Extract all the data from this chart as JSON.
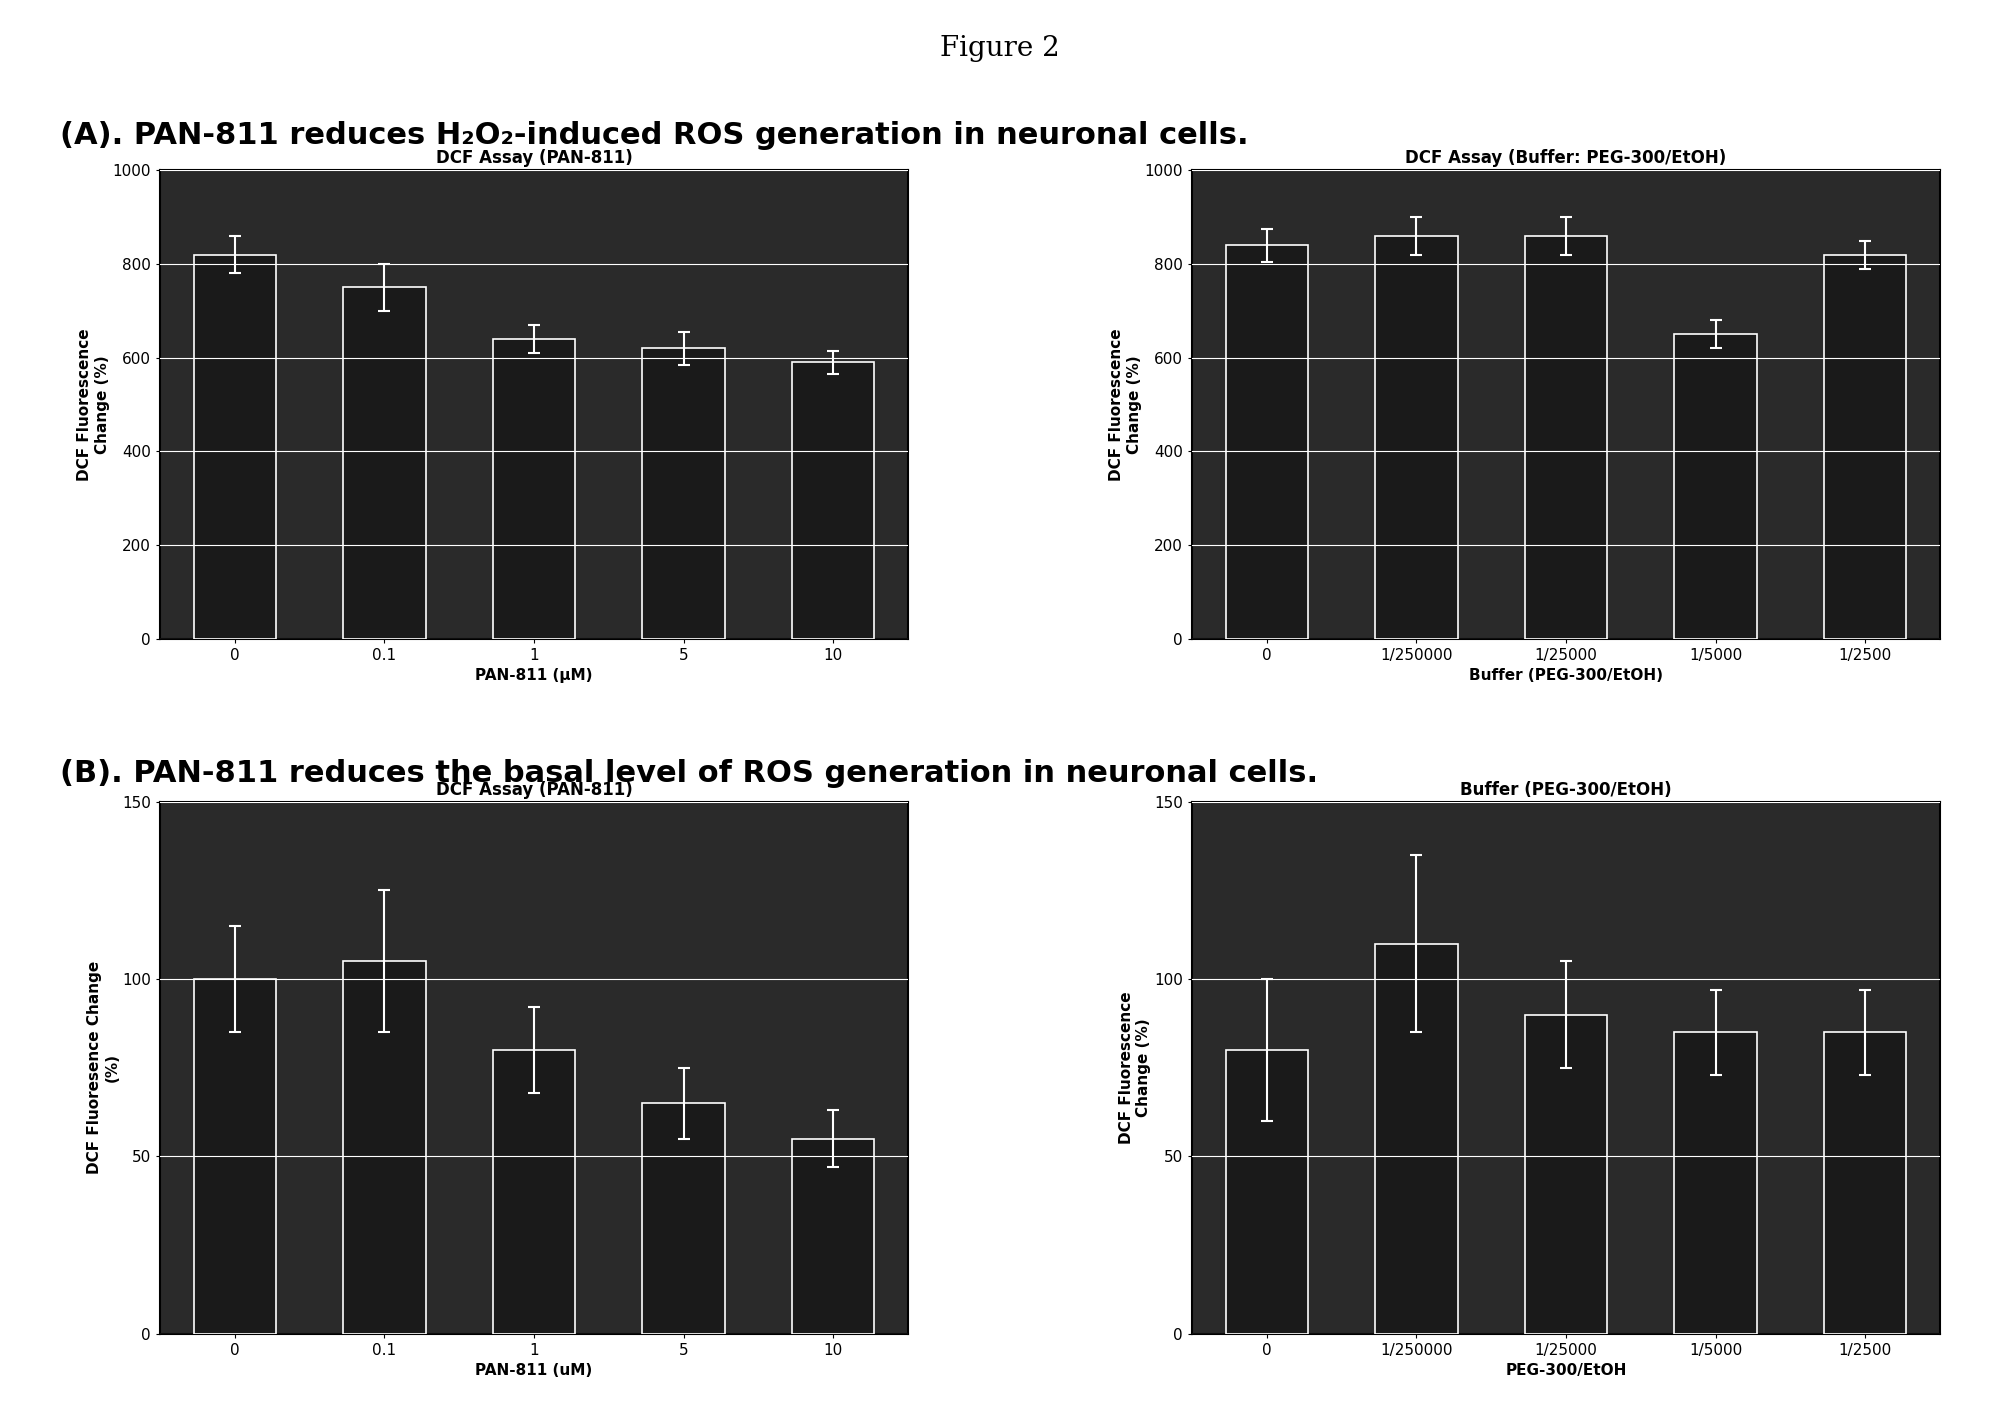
{
  "figure_title": "Figure 2",
  "subtitle_A": "(A). PAN-811 reduces H₂O₂-induced ROS generation in neuronal cells.",
  "subtitle_B": "(B). PAN-811 reduces the basal level of ROS generation in neuronal cells.",
  "plot_A1": {
    "title": "DCF Assay (PAN-811)",
    "xlabel": "PAN-811 (μM)",
    "ylabel": "DCF Fluorescence\nChange (%)",
    "xtick_labels": [
      "0",
      "0.1",
      "1",
      "5",
      "10"
    ],
    "bar_values": [
      820,
      750,
      640,
      620,
      590
    ],
    "bar_errors": [
      40,
      50,
      30,
      35,
      25
    ],
    "ylim": [
      0,
      1000
    ],
    "yticks": [
      0,
      200,
      400,
      600,
      800,
      1000
    ]
  },
  "plot_A2": {
    "title": "DCF Assay (Buffer: PEG-300/EtOH)",
    "xlabel": "Buffer (PEG-300/EtOH)",
    "ylabel": "DCF Fluorescence\nChange (%)",
    "xtick_labels": [
      "0",
      "1/250000",
      "1/25000",
      "1/5000",
      "1/2500"
    ],
    "bar_values": [
      840,
      860,
      860,
      650,
      820
    ],
    "bar_errors": [
      35,
      40,
      40,
      30,
      30
    ],
    "ylim": [
      0,
      1000
    ],
    "yticks": [
      0,
      200,
      400,
      600,
      800,
      1000
    ]
  },
  "plot_B1": {
    "title": "DCF Assay (PAN-811)",
    "xlabel": "PAN-811 (uM)",
    "ylabel": "DCF Fluoresence Change\n(%)",
    "xtick_labels": [
      "0",
      "0.1",
      "1",
      "5",
      "10"
    ],
    "bar_values": [
      100,
      105,
      80,
      65,
      55
    ],
    "bar_errors": [
      15,
      20,
      12,
      10,
      8
    ],
    "ylim": [
      0,
      150
    ],
    "yticks": [
      0,
      50,
      100,
      150
    ]
  },
  "plot_B2": {
    "title": "Buffer (PEG-300/EtOH)",
    "xlabel": "PEG-300/EtOH",
    "ylabel": "DCF Fluorescence\nChange (%)",
    "xtick_labels": [
      "0",
      "1/250000",
      "1/25000",
      "1/5000",
      "1/2500"
    ],
    "bar_values": [
      80,
      110,
      90,
      85,
      85
    ],
    "bar_errors": [
      20,
      25,
      15,
      12,
      12
    ],
    "ylim": [
      0,
      150
    ],
    "yticks": [
      0,
      50,
      100,
      150
    ]
  },
  "bar_color": "#1a1a1a",
  "bar_edge_color": "#ffffff",
  "background_color": "#ffffff",
  "plot_bg_color": "#2a2a2a",
  "grid_color": "#ffffff",
  "error_color": "#ffffff",
  "text_color": "#000000",
  "figure_title_fontsize": 20,
  "subtitle_fontsize": 22,
  "plot_title_fontsize": 12,
  "axis_label_fontsize": 11,
  "tick_fontsize": 11,
  "bar_width": 0.55
}
